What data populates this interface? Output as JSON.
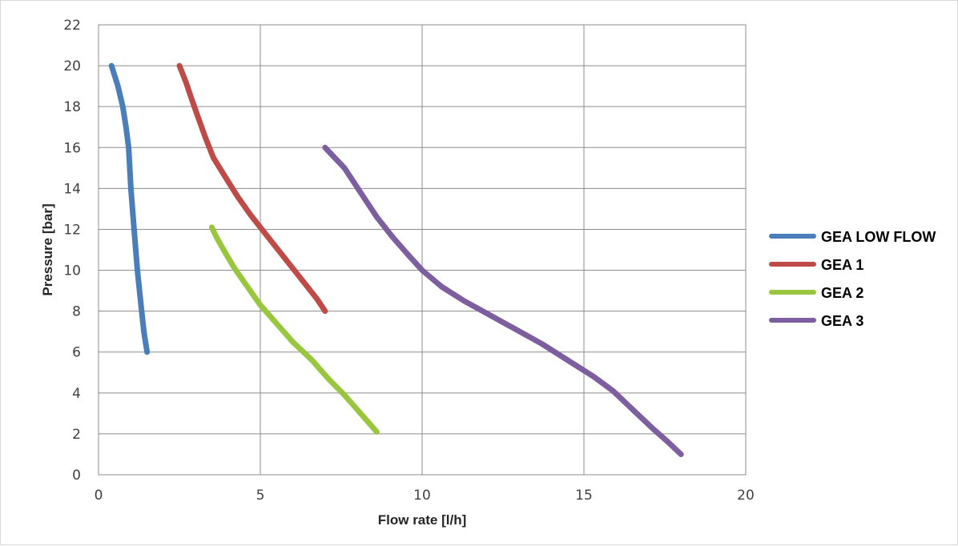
{
  "chart_data": {
    "type": "line",
    "title": "",
    "xlabel": "Flow rate [l/h]",
    "ylabel": "Pressure [bar]",
    "xlim": [
      0,
      20
    ],
    "ylim": [
      0,
      22
    ],
    "xticks": [
      0,
      5,
      10,
      15,
      20
    ],
    "yticks": [
      0,
      2,
      4,
      6,
      8,
      10,
      12,
      14,
      16,
      18,
      20,
      22
    ],
    "grid": true,
    "legend_position": "right",
    "series": [
      {
        "name": "GEA LOW FLOW",
        "color": "#4a7ebb",
        "points": [
          [
            0.4,
            20
          ],
          [
            0.6,
            19
          ],
          [
            0.75,
            18
          ],
          [
            0.85,
            17
          ],
          [
            0.93,
            16
          ],
          [
            1.0,
            14
          ],
          [
            1.1,
            12
          ],
          [
            1.2,
            10
          ],
          [
            1.3,
            8.5
          ],
          [
            1.4,
            7
          ],
          [
            1.5,
            6
          ]
        ]
      },
      {
        "name": "GEA 1",
        "color": "#be4b48",
        "points": [
          [
            2.5,
            20
          ],
          [
            2.7,
            19.2
          ],
          [
            2.85,
            18.5
          ],
          [
            3.05,
            17.6
          ],
          [
            3.3,
            16.5
          ],
          [
            3.55,
            15.5
          ],
          [
            3.9,
            14.6
          ],
          [
            4.3,
            13.6
          ],
          [
            4.7,
            12.7
          ],
          [
            5.1,
            11.9
          ],
          [
            5.55,
            11
          ],
          [
            6.0,
            10.1
          ],
          [
            6.45,
            9.2
          ],
          [
            6.75,
            8.6
          ],
          [
            7.0,
            8
          ]
        ]
      },
      {
        "name": "GEA 2",
        "color": "#98c73f",
        "points": [
          [
            3.5,
            12.1
          ],
          [
            3.65,
            11.6
          ],
          [
            3.9,
            10.9
          ],
          [
            4.2,
            10.1
          ],
          [
            4.6,
            9.2
          ],
          [
            5.0,
            8.3
          ],
          [
            5.5,
            7.4
          ],
          [
            6.0,
            6.5
          ],
          [
            6.6,
            5.6
          ],
          [
            7.1,
            4.7
          ],
          [
            7.6,
            3.9
          ],
          [
            8.1,
            3.0
          ],
          [
            8.6,
            2.1
          ]
        ]
      },
      {
        "name": "GEA 3",
        "color": "#7d5fa0",
        "points": [
          [
            7.0,
            16
          ],
          [
            7.6,
            15
          ],
          [
            8.1,
            13.8
          ],
          [
            8.6,
            12.6
          ],
          [
            9.1,
            11.6
          ],
          [
            9.6,
            10.7
          ],
          [
            10.0,
            10
          ],
          [
            10.6,
            9.2
          ],
          [
            11.3,
            8.5
          ],
          [
            12.1,
            7.8
          ],
          [
            12.9,
            7.1
          ],
          [
            13.7,
            6.4
          ],
          [
            14.6,
            5.5
          ],
          [
            15.3,
            4.8
          ],
          [
            15.9,
            4.1
          ],
          [
            16.5,
            3.2
          ],
          [
            17.1,
            2.3
          ],
          [
            17.6,
            1.6
          ],
          [
            18.0,
            1.0
          ]
        ]
      }
    ]
  }
}
